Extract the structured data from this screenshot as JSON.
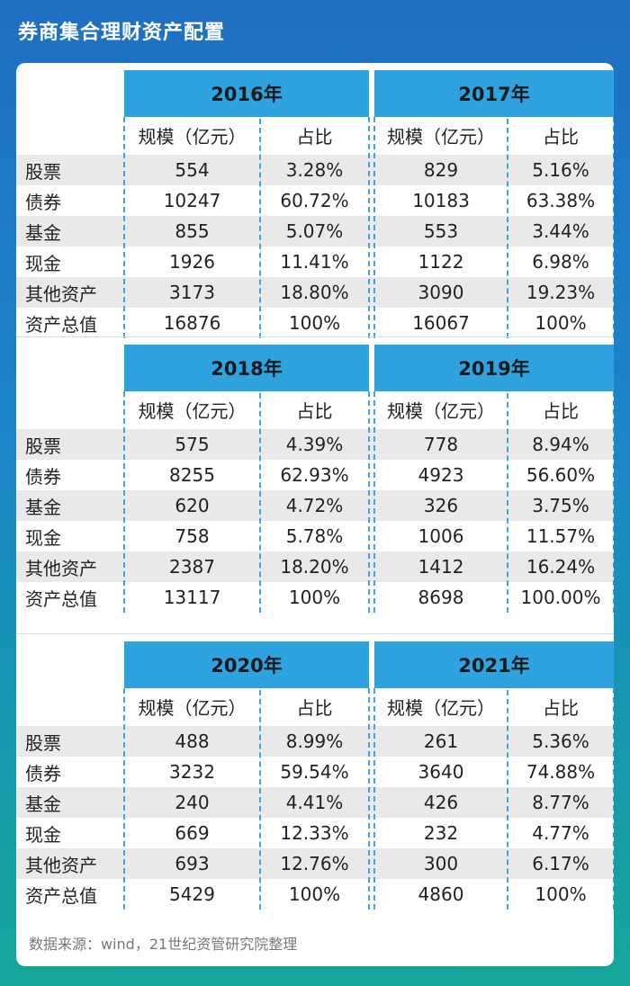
{
  "title": "券商集合理财资产配置",
  "source": "数据来源：wind，21世纪资管研究院整理",
  "chart_data": {
    "type": "table",
    "col_headers": [
      "规模（亿元）",
      "占比"
    ],
    "row_labels": [
      "股票",
      "债券",
      "基金",
      "现金",
      "其他资产",
      "资产总值"
    ],
    "sections": [
      {
        "years": [
          {
            "year": "2016年",
            "rows": [
              [
                "554",
                "3.28%"
              ],
              [
                "10247",
                "60.72%"
              ],
              [
                "855",
                "5.07%"
              ],
              [
                "1926",
                "11.41%"
              ],
              [
                "3173",
                "18.80%"
              ],
              [
                "16876",
                "100%"
              ]
            ]
          },
          {
            "year": "2017年",
            "rows": [
              [
                "829",
                "5.16%"
              ],
              [
                "10183",
                "63.38%"
              ],
              [
                "553",
                "3.44%"
              ],
              [
                "1122",
                "6.98%"
              ],
              [
                "3090",
                "19.23%"
              ],
              [
                "16067",
                "100%"
              ]
            ]
          }
        ]
      },
      {
        "years": [
          {
            "year": "2018年",
            "rows": [
              [
                "575",
                "4.39%"
              ],
              [
                "8255",
                "62.93%"
              ],
              [
                "620",
                "4.72%"
              ],
              [
                "758",
                "5.78%"
              ],
              [
                "2387",
                "18.20%"
              ],
              [
                "13117",
                "100%"
              ]
            ]
          },
          {
            "year": "2019年",
            "rows": [
              [
                "778",
                "8.94%"
              ],
              [
                "4923",
                "56.60%"
              ],
              [
                "326",
                "3.75%"
              ],
              [
                "1006",
                "11.57%"
              ],
              [
                "1412",
                "16.24%"
              ],
              [
                "8698",
                "100.00%"
              ]
            ]
          }
        ]
      },
      {
        "years": [
          {
            "year": "2020年",
            "rows": [
              [
                "488",
                "8.99%"
              ],
              [
                "3232",
                "59.54%"
              ],
              [
                "240",
                "4.41%"
              ],
              [
                "669",
                "12.33%"
              ],
              [
                "693",
                "12.76%"
              ],
              [
                "5429",
                "100%"
              ]
            ]
          },
          {
            "year": "2021年",
            "rows": [
              [
                "261",
                "5.36%"
              ],
              [
                "3640",
                "74.88%"
              ],
              [
                "426",
                "8.77%"
              ],
              [
                "232",
                "4.77%"
              ],
              [
                "300",
                "6.17%"
              ],
              [
                "4860",
                "100%"
              ]
            ]
          }
        ]
      }
    ]
  }
}
